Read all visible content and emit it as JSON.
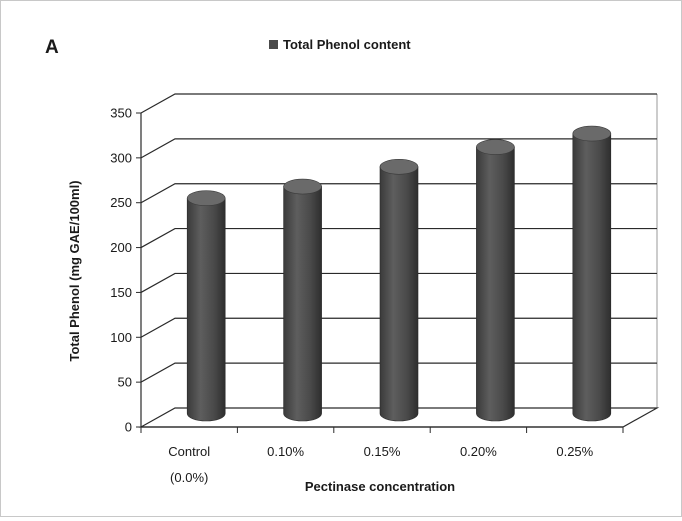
{
  "panel_label": "A",
  "chart_data": {
    "type": "bar",
    "title": "",
    "categories": [
      "Control (0.0%)",
      "0.10%",
      "0.15%",
      "0.20%",
      "0.25%"
    ],
    "category_lines": [
      [
        "Control",
        "(0.0%)"
      ],
      [
        "0.10%"
      ],
      [
        "0.15%"
      ],
      [
        "0.20%"
      ],
      [
        "0.25%"
      ]
    ],
    "series": [
      {
        "name": "Total Phenol content",
        "values": [
          240,
          253,
          275,
          297,
          312
        ]
      }
    ],
    "xlabel": "Pectinase concentration",
    "ylabel": "Total Phenol (mg GAE/100ml)",
    "ylim": [
      0,
      350
    ],
    "yticks": [
      "0",
      "50",
      "100",
      "150",
      "200",
      "250",
      "300",
      "350"
    ],
    "grid": true,
    "legend_position": "top-center",
    "style": "3d-cylinder",
    "colors": {
      "bar": "#4a4a4a",
      "grid": "#2a2a2a",
      "background": "#ffffff"
    }
  }
}
